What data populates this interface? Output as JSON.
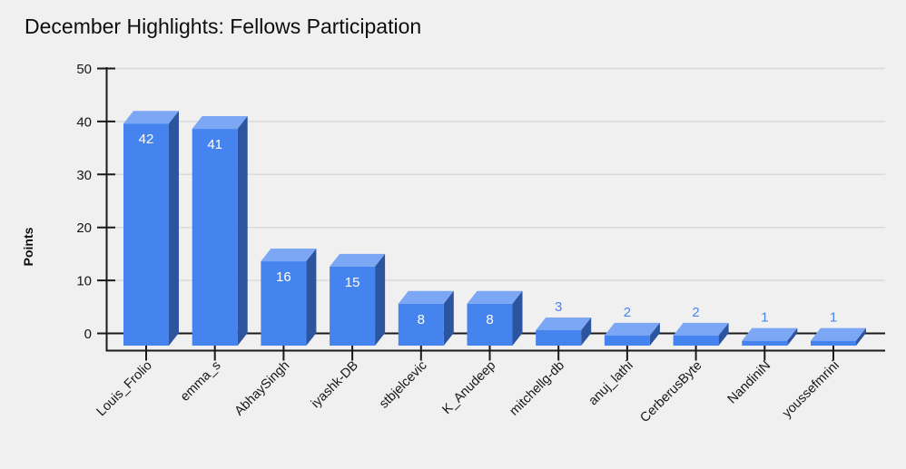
{
  "page": {
    "background": "#f0f0f0"
  },
  "chart_data": {
    "type": "bar",
    "style": "3d-column",
    "title": "December Highlights: Fellows Participation",
    "xlabel": "",
    "ylabel": "Points",
    "categories": [
      "Louis_Frolio",
      "emma_s",
      "AbhaySingh",
      "iyashk-DB",
      "stbjelcevic",
      "K_Anudeep",
      "mitchellg-db",
      "anuj_lathi",
      "CerberusByte",
      "NandiniN",
      "youssefmrini"
    ],
    "values": [
      42,
      41,
      16,
      15,
      8,
      8,
      3,
      2,
      2,
      1,
      1
    ],
    "ylim": [
      0,
      50
    ],
    "yticks": [
      0,
      10,
      20,
      30,
      40,
      50
    ],
    "grid": true,
    "legend_position": "none",
    "value_labels_shown": true,
    "label_inside_min_value": 8,
    "colors": {
      "bar_front": "#4584ee",
      "bar_top": "#7ba7f5",
      "bar_side": "#2d549f",
      "label_inside": "#ffffff",
      "label_outside": "#4886ef",
      "gridline": "#d9d9d9",
      "axis": "#1a1a1a",
      "text": "#161616",
      "background": "#f0f0f0"
    }
  }
}
